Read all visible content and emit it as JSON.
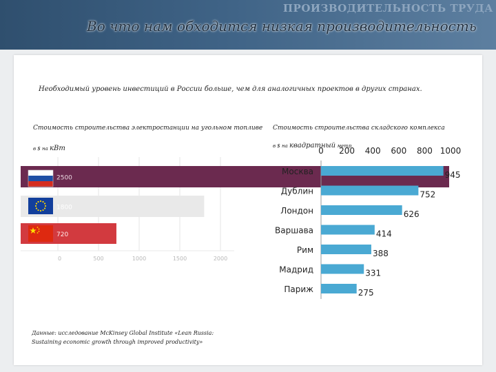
{
  "header": {
    "watermark": "ПРОИЗВОДИТЕЛЬНОСТЬ ТРУДА",
    "title": "Во что нам обходится низкая производительность"
  },
  "intro": "Необходимый уровень инвестиций в России больше, чем для аналогичных проектов в других странах.",
  "source": "Данные: исследование McKinsey Global Institute «Lean Russia: Sustaining economic growth through improved productivity»",
  "colors": {
    "left_bar_russia": "#6b2a4f",
    "left_bar_eu": "#e8e8e8",
    "left_bar_china": "#d23a3f",
    "right_bar": "#4aa9d3"
  },
  "chart_data": [
    {
      "type": "bar",
      "orientation": "horizontal",
      "title": "Стоимость строительства электростанции на угольном топливе",
      "unit_prefix": "в $ на ",
      "unit_main": "кВт",
      "categories": [
        "flag-russia",
        "flag-eu",
        "flag-china"
      ],
      "values": [
        2500,
        1800,
        720
      ],
      "value_labels": [
        "2500",
        "1800",
        "720"
      ],
      "xlim": [
        0,
        2000
      ],
      "xticks": [
        "0",
        "500",
        "1000",
        "1500",
        "2000"
      ],
      "grid": true
    },
    {
      "type": "bar",
      "orientation": "horizontal",
      "title": "Стоимость строительства складского комплекса",
      "unit_prefix": "в $ на ",
      "unit_main": "квадратный",
      "unit_suffix": " метр",
      "categories": [
        "Москва",
        "Дублин",
        "Лондон",
        "Варшава",
        "Рим",
        "Мадрид",
        "Париж"
      ],
      "values": [
        945,
        752,
        626,
        414,
        388,
        331,
        275
      ],
      "value_labels": [
        "945",
        "752",
        "626",
        "414",
        "388",
        "331",
        "275"
      ],
      "xlim": [
        0,
        1000
      ],
      "xticks": [
        "0",
        "200",
        "400",
        "600",
        "800",
        "1000"
      ],
      "grid": false
    }
  ]
}
